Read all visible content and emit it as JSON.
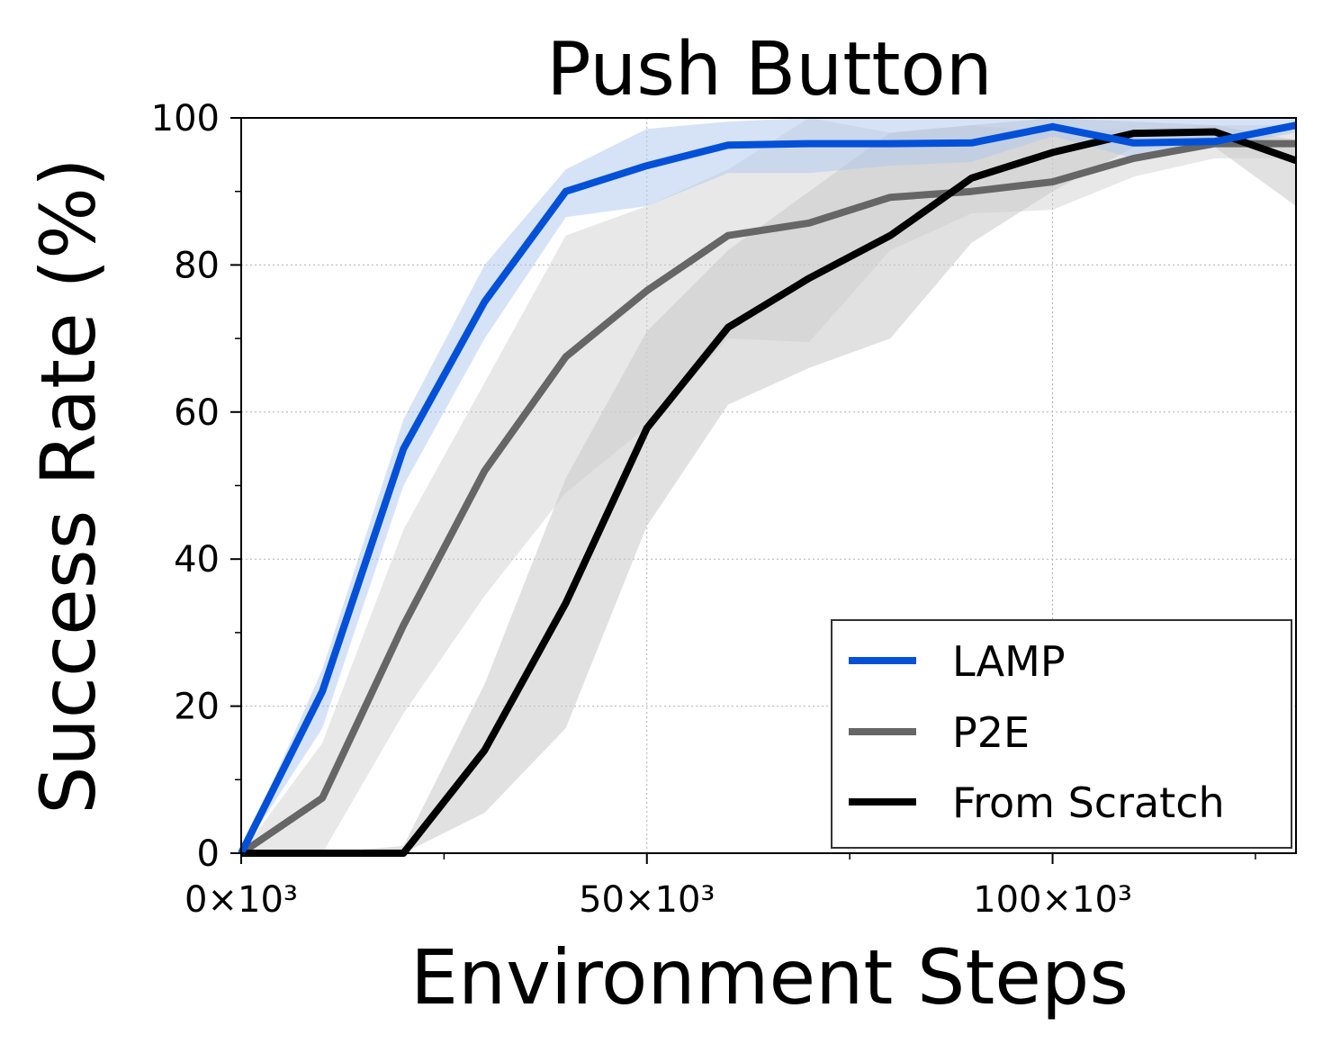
{
  "chart_data": {
    "type": "line",
    "title": "Push Button",
    "xlabel": "Environment Steps",
    "ylabel": "Success Rate (%)",
    "xlim": [
      0,
      130000
    ],
    "ylim": [
      0,
      100
    ],
    "x_ticks": [
      {
        "value": 0,
        "label": "0×10³"
      },
      {
        "value": 50000,
        "label": "50×10³"
      },
      {
        "value": 100000,
        "label": "100×10³"
      }
    ],
    "y_ticks": [
      {
        "value": 0,
        "label": "0"
      },
      {
        "value": 20,
        "label": "20"
      },
      {
        "value": 40,
        "label": "40"
      },
      {
        "value": 60,
        "label": "60"
      },
      {
        "value": 80,
        "label": "80"
      },
      {
        "value": 100,
        "label": "100"
      }
    ],
    "grid": true,
    "legend_position": "bottom-right",
    "series": [
      {
        "name": "LAMP",
        "color": "#0050d8",
        "band_color": "#aec7f0",
        "x": [
          0,
          10000,
          20000,
          30000,
          40000,
          50000,
          60000,
          70000,
          80000,
          90000,
          100000,
          110000,
          120000,
          130000
        ],
        "values": [
          0,
          22,
          55,
          75,
          90,
          93.5,
          96.3,
          96.5,
          96.5,
          96.6,
          98.8,
          96.6,
          96.8,
          99
        ],
        "upper": [
          0,
          25,
          59,
          80,
          93,
          98.5,
          99.5,
          100,
          100,
          100,
          100,
          100,
          100,
          100
        ],
        "lower": [
          0,
          17,
          50,
          70,
          86.5,
          88,
          92.5,
          92.5,
          93.5,
          94,
          97.5,
          94.5,
          96,
          98
        ]
      },
      {
        "name": "P2E",
        "color": "#666666",
        "band_color": "#cccccc",
        "x": [
          0,
          10000,
          20000,
          30000,
          40000,
          50000,
          60000,
          70000,
          80000,
          90000,
          100000,
          110000,
          120000,
          130000
        ],
        "values": [
          0,
          7.5,
          31,
          52,
          67.5,
          76.5,
          84,
          85.7,
          89.2,
          90,
          91.3,
          94.5,
          96.5,
          96.5
        ],
        "upper": [
          0,
          15,
          44,
          64,
          84,
          88,
          93,
          100,
          98,
          99,
          98,
          98.5,
          99,
          99
        ],
        "lower": [
          0,
          0,
          19,
          35,
          49,
          58,
          70,
          69.5,
          82,
          87,
          87.5,
          92,
          94.5,
          94.5
        ]
      },
      {
        "name": "From Scratch",
        "color": "#000000",
        "band_color": "#c8c8c8",
        "x": [
          0,
          10000,
          20000,
          30000,
          40000,
          50000,
          60000,
          70000,
          80000,
          90000,
          100000,
          110000,
          120000,
          130000
        ],
        "values": [
          0,
          0,
          0,
          14,
          34,
          57.8,
          71.5,
          78.2,
          84,
          91.8,
          95.3,
          97.9,
          98.1,
          94.2
        ],
        "upper": [
          0,
          0,
          1,
          23,
          51,
          71,
          82,
          90,
          98,
          99,
          100,
          99.5,
          99,
          97
        ],
        "lower": [
          0,
          0,
          0,
          5.5,
          17,
          44.5,
          61,
          66,
          70,
          83,
          90,
          96,
          96,
          88
        ]
      }
    ]
  }
}
